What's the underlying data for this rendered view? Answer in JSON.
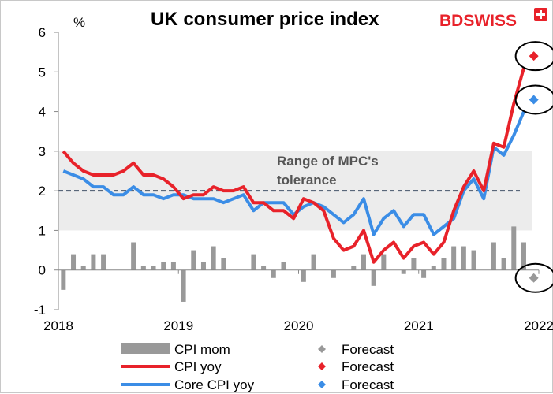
{
  "chart_data": {
    "type": "line",
    "title": "UK consumer price index",
    "logo_text": "BDSWISS",
    "unit_label": "%",
    "ylim": [
      -1,
      6
    ],
    "yticks": [
      -1,
      0,
      1,
      2,
      3,
      4,
      5,
      6
    ],
    "xlim": [
      2018,
      2022
    ],
    "xticks": [
      "2018",
      "2019",
      "2020",
      "2021",
      "2022"
    ],
    "grid": false,
    "tolerance_band": {
      "low": 1,
      "high": 3,
      "label_line1": "Range of MPC's",
      "label_line2": "tolerance",
      "color": "#ececec"
    },
    "target_line": {
      "value": 2,
      "color": "#44546a"
    },
    "months": [
      "2018-01",
      "2018-02",
      "2018-03",
      "2018-04",
      "2018-05",
      "2018-06",
      "2018-07",
      "2018-08",
      "2018-09",
      "2018-10",
      "2018-11",
      "2018-12",
      "2019-01",
      "2019-02",
      "2019-03",
      "2019-04",
      "2019-05",
      "2019-06",
      "2019-07",
      "2019-08",
      "2019-09",
      "2019-10",
      "2019-11",
      "2019-12",
      "2020-01",
      "2020-02",
      "2020-03",
      "2020-04",
      "2020-05",
      "2020-06",
      "2020-07",
      "2020-08",
      "2020-09",
      "2020-10",
      "2020-11",
      "2020-12",
      "2021-01",
      "2021-02",
      "2021-03",
      "2021-04",
      "2021-05",
      "2021-06",
      "2021-07",
      "2021-08",
      "2021-09",
      "2021-10",
      "2021-11"
    ],
    "series": [
      {
        "name": "CPI mom",
        "kind": "bar",
        "color": "#999999",
        "values": [
          -0.5,
          0.4,
          0.1,
          0.4,
          0.4,
          0.0,
          0.0,
          0.7,
          0.1,
          0.1,
          0.2,
          0.2,
          -0.8,
          0.5,
          0.2,
          0.6,
          0.3,
          0.0,
          0.0,
          0.4,
          0.1,
          -0.2,
          0.2,
          0.0,
          -0.3,
          0.4,
          0.0,
          -0.2,
          0.0,
          0.1,
          0.4,
          -0.4,
          0.4,
          0.0,
          -0.1,
          0.3,
          -0.2,
          0.1,
          0.3,
          0.6,
          0.6,
          0.5,
          0.0,
          0.7,
          0.3,
          1.1,
          0.7
        ],
        "forecast": {
          "name": "Forecast",
          "month": "2021-12",
          "value": -0.2,
          "color": "#999999"
        }
      },
      {
        "name": "CPI yoy",
        "kind": "line",
        "color": "#e8222a",
        "values": [
          3.0,
          2.7,
          2.5,
          2.4,
          2.4,
          2.4,
          2.5,
          2.7,
          2.4,
          2.4,
          2.3,
          2.1,
          1.8,
          1.9,
          1.9,
          2.1,
          2.0,
          2.0,
          2.1,
          1.7,
          1.7,
          1.5,
          1.5,
          1.3,
          1.8,
          1.7,
          1.5,
          0.8,
          0.5,
          0.6,
          1.0,
          0.2,
          0.5,
          0.7,
          0.3,
          0.6,
          0.7,
          0.4,
          0.7,
          1.5,
          2.1,
          2.5,
          2.0,
          3.2,
          3.1,
          4.2,
          5.1
        ],
        "forecast": {
          "name": "Forecast",
          "month": "2021-12",
          "value": 5.4,
          "color": "#e8222a"
        }
      },
      {
        "name": "Core CPI yoy",
        "kind": "line",
        "color": "#3b8de6",
        "values": [
          2.5,
          2.4,
          2.3,
          2.1,
          2.1,
          1.9,
          1.9,
          2.1,
          1.9,
          1.9,
          1.8,
          1.9,
          1.9,
          1.8,
          1.8,
          1.8,
          1.7,
          1.8,
          1.9,
          1.5,
          1.7,
          1.7,
          1.7,
          1.4,
          1.6,
          1.7,
          1.6,
          1.4,
          1.2,
          1.4,
          1.8,
          0.9,
          1.3,
          1.5,
          1.1,
          1.4,
          1.4,
          0.9,
          1.1,
          1.3,
          2.0,
          2.3,
          1.8,
          3.1,
          2.9,
          3.4,
          4.0
        ],
        "forecast": {
          "name": "Forecast",
          "month": "2021-12",
          "value": 4.3,
          "color": "#3b8de6"
        }
      }
    ],
    "legend": [
      {
        "label": "CPI mom",
        "color": "#999999",
        "kind": "bar"
      },
      {
        "label": "Forecast",
        "color": "#999999",
        "kind": "diamond"
      },
      {
        "label": "CPI yoy",
        "color": "#e8222a",
        "kind": "line"
      },
      {
        "label": "Forecast",
        "color": "#e8222a",
        "kind": "diamond"
      },
      {
        "label": "Core CPI yoy",
        "color": "#3b8de6",
        "kind": "line"
      },
      {
        "label": "Forecast",
        "color": "#3b8de6",
        "kind": "diamond"
      }
    ],
    "legend_position": "bottom"
  }
}
